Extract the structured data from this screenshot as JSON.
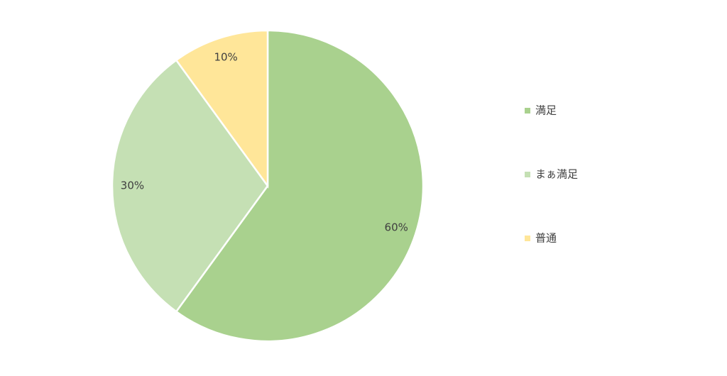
{
  "chart_data": {
    "type": "pie",
    "categories": [
      "満足",
      "まぁ満足",
      "普通"
    ],
    "values": [
      60,
      30,
      10
    ],
    "value_labels": [
      "60%",
      "30%",
      "10%"
    ],
    "colors": [
      "#a9d18e",
      "#c5e0b4",
      "#ffe699"
    ],
    "legend": "right"
  }
}
